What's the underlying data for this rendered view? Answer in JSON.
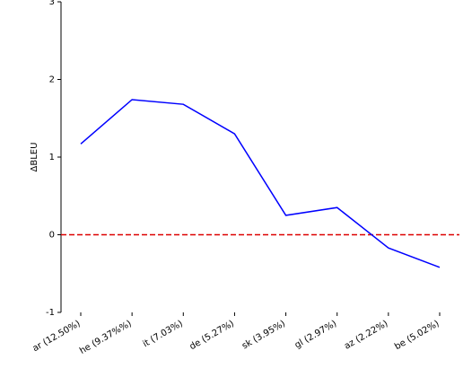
{
  "chart_data": {
    "type": "line",
    "y_label": "ΔBLEU",
    "categories": [
      "ar (12.50%)",
      "he (9.37%%)",
      "it (7.03%)",
      "de (5.27%)",
      "sk (3.95%)",
      "gl (2.97%)",
      "az (2.22%)",
      "be (5.02%)"
    ],
    "series": [
      {
        "name": "ΔBLEU",
        "color": "#0000ff",
        "values": [
          1.17,
          1.74,
          1.68,
          1.3,
          0.25,
          0.35,
          -0.17,
          -0.42
        ]
      }
    ],
    "ylim": [
      -1,
      3
    ],
    "yticks": [
      -1,
      0,
      1,
      2,
      3
    ],
    "reference_line": {
      "value": 0,
      "color": "#dd0000"
    }
  }
}
